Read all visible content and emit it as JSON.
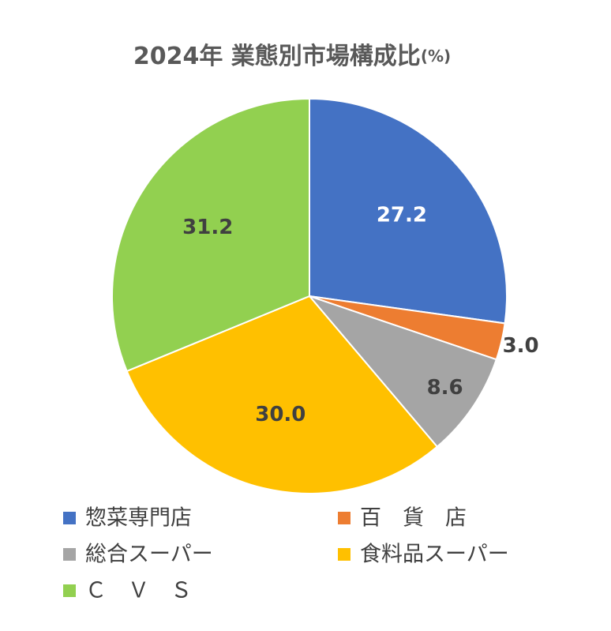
{
  "chart_data": {
    "type": "pie",
    "title": "2024年 業態別市場構成比",
    "unit": "(%)",
    "categories": [
      "惣菜専門店",
      "百　貨　店",
      "総合スーパー",
      "食料品スーパー",
      "Ｃ　Ｖ　Ｓ"
    ],
    "values": [
      27.2,
      3.0,
      8.6,
      30.0,
      31.2
    ],
    "value_labels": [
      "27.2",
      "3.0",
      "8.6",
      "30.0",
      "31.2"
    ],
    "colors": [
      "#4472c4",
      "#ed7d31",
      "#a5a5a5",
      "#ffc000",
      "#92d050"
    ],
    "label_colors": [
      "#ffffff",
      "#404040",
      "#404040",
      "#404040",
      "#404040"
    ],
    "legend": "bottom"
  }
}
